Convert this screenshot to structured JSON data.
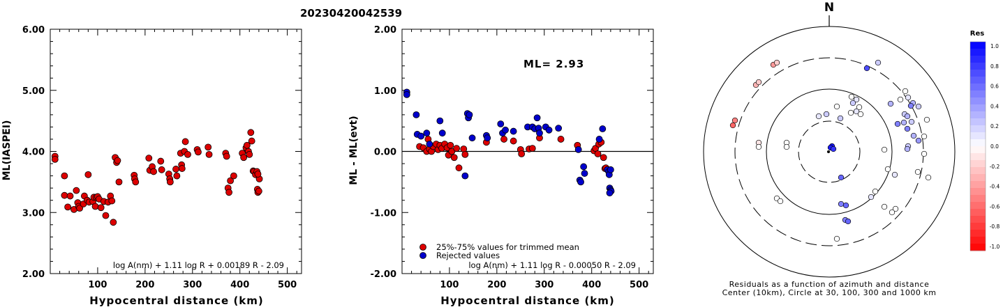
{
  "title": "20230420042539",
  "chart_data": [
    {
      "type": "scatter",
      "xlabel": "Hypocentral distance (km)",
      "ylabel": "ML(IASPEI)",
      "xlim": [
        0,
        530
      ],
      "ylim": [
        2.0,
        6.0
      ],
      "xticks": [
        100,
        200,
        300,
        400,
        500
      ],
      "yticks": [
        "2.00",
        "3.00",
        "4.00",
        "5.00",
        "6.00"
      ],
      "formula": "log A(nm) + 1.11 log R + 0.00189 R - 2.09",
      "series": [
        {
          "color": "#dd0000",
          "points": [
            [
              10,
              3.92
            ],
            [
              10,
              3.87
            ],
            [
              30,
              3.6
            ],
            [
              30,
              3.28
            ],
            [
              37,
              3.09
            ],
            [
              42,
              3.27
            ],
            [
              50,
              3.05
            ],
            [
              55,
              3.36
            ],
            [
              58,
              3.16
            ],
            [
              60,
              3.1
            ],
            [
              62,
              3.07
            ],
            [
              70,
              3.14
            ],
            [
              72,
              3.27
            ],
            [
              78,
              3.2
            ],
            [
              80,
              3.62
            ],
            [
              82,
              3.17
            ],
            [
              90,
              3.18
            ],
            [
              92,
              3.25
            ],
            [
              95,
              3.1
            ],
            [
              97,
              3.25
            ],
            [
              100,
              3.26
            ],
            [
              103,
              3.22
            ],
            [
              107,
              3.08
            ],
            [
              113,
              3.18
            ],
            [
              117,
              2.95
            ],
            [
              122,
              3.17
            ],
            [
              127,
              3.27
            ],
            [
              130,
              3.19
            ],
            [
              133,
              2.84
            ],
            [
              137,
              3.9
            ],
            [
              140,
              3.82
            ],
            [
              142,
              3.85
            ],
            [
              145,
              3.5
            ],
            [
              177,
              3.61
            ],
            [
              178,
              3.55
            ],
            [
              180,
              3.5
            ],
            [
              208,
              3.89
            ],
            [
              210,
              3.69
            ],
            [
              215,
              3.75
            ],
            [
              218,
              3.67
            ],
            [
              233,
              3.84
            ],
            [
              235,
              3.7
            ],
            [
              250,
              3.63
            ],
            [
              252,
              3.55
            ],
            [
              253,
              3.5
            ],
            [
              265,
              3.71
            ],
            [
              267,
              3.6
            ],
            [
              275,
              3.97
            ],
            [
              277,
              3.78
            ],
            [
              278,
              3.72
            ],
            [
              283,
              4.0
            ],
            [
              285,
              4.16
            ],
            [
              290,
              3.95
            ],
            [
              310,
              4.03
            ],
            [
              312,
              3.99
            ],
            [
              333,
              4.07
            ],
            [
              335,
              3.95
            ],
            [
              370,
              3.97
            ],
            [
              372,
              3.92
            ],
            [
              375,
              3.4
            ],
            [
              377,
              3.33
            ],
            [
              380,
              3.52
            ],
            [
              387,
              3.6
            ],
            [
              405,
              3.97
            ],
            [
              408,
              3.9
            ],
            [
              413,
              4.06
            ],
            [
              415,
              4.1
            ],
            [
              418,
              4.0
            ],
            [
              420,
              3.95
            ],
            [
              423,
              4.31
            ],
            [
              425,
              4.17
            ],
            [
              428,
              3.68
            ],
            [
              430,
              3.67
            ],
            [
              433,
              3.62
            ],
            [
              436,
              3.67
            ],
            [
              437,
              3.38
            ],
            [
              438,
              3.33
            ],
            [
              440,
              3.35
            ],
            [
              441,
              3.55
            ],
            [
              438,
              3.63
            ]
          ]
        }
      ]
    },
    {
      "type": "scatter",
      "xlabel": "Hypocentral distance (km)",
      "ylabel": "ML - ML(evt)",
      "xlim": [
        0,
        530
      ],
      "ylim": [
        -2.0,
        2.0
      ],
      "xticks": [
        100,
        200,
        300,
        400,
        500
      ],
      "yticks": [
        "-2.00",
        "-1.00",
        "0.00",
        "1.00",
        "2.00"
      ],
      "annotation": "ML= 2.93",
      "formula": "log A(nm) + 1.11 log R - 0.00050 R - 2.09",
      "legend": [
        "25%-75% values for trimmed mean",
        "Rejected values"
      ],
      "series": [
        {
          "name": "25%-75% values for trimmed mean",
          "color": "#dd0000",
          "points": [
            [
              37,
              0.08
            ],
            [
              45,
              0.06
            ],
            [
              52,
              0.0
            ],
            [
              55,
              0.2
            ],
            [
              58,
              0.04
            ],
            [
              62,
              0.0
            ],
            [
              66,
              0.08
            ],
            [
              72,
              0.12
            ],
            [
              76,
              0.03
            ],
            [
              80,
              0.1
            ],
            [
              84,
              0.05
            ],
            [
              90,
              0.12
            ],
            [
              95,
              0.06
            ],
            [
              98,
              -0.06
            ],
            [
              102,
              0.1
            ],
            [
              105,
              0.0
            ],
            [
              110,
              -0.1
            ],
            [
              115,
              0.05
            ],
            [
              120,
              -0.27
            ],
            [
              130,
              0.04
            ],
            [
              133,
              -0.05
            ],
            [
              178,
              0.15
            ],
            [
              215,
              0.2
            ],
            [
              235,
              0.17
            ],
            [
              250,
              0.03
            ],
            [
              252,
              -0.04
            ],
            [
              268,
              0.04
            ],
            [
              275,
              0.05
            ],
            [
              290,
              0.22
            ],
            [
              335,
              0.2
            ],
            [
              370,
              0.1
            ],
            [
              405,
              0.01
            ],
            [
              408,
              0.05
            ],
            [
              413,
              -0.04
            ],
            [
              415,
              0.12
            ],
            [
              420,
              0.15
            ],
            [
              425,
              -0.1
            ],
            [
              428,
              -0.28
            ],
            [
              430,
              -0.27
            ]
          ]
        },
        {
          "name": "Rejected values",
          "color": "#0000cc",
          "points": [
            [
              10,
              0.97
            ],
            [
              10,
              0.93
            ],
            [
              30,
              0.6
            ],
            [
              32,
              0.28
            ],
            [
              40,
              0.25
            ],
            [
              52,
              0.3
            ],
            [
              58,
              0.12
            ],
            [
              80,
              0.5
            ],
            [
              85,
              0.3
            ],
            [
              138,
              0.62
            ],
            [
              140,
              0.55
            ],
            [
              142,
              0.6
            ],
            [
              148,
              0.22
            ],
            [
              133,
              -0.4
            ],
            [
              178,
              0.26
            ],
            [
              180,
              0.22
            ],
            [
              208,
              0.45
            ],
            [
              212,
              0.3
            ],
            [
              218,
              0.35
            ],
            [
              235,
              0.33
            ],
            [
              265,
              0.4
            ],
            [
              275,
              0.4
            ],
            [
              280,
              0.37
            ],
            [
              285,
              0.55
            ],
            [
              288,
              0.38
            ],
            [
              290,
              0.3
            ],
            [
              303,
              0.4
            ],
            [
              310,
              0.35
            ],
            [
              330,
              0.38
            ],
            [
              372,
              0.03
            ],
            [
              375,
              -0.47
            ],
            [
              377,
              -0.5
            ],
            [
              383,
              -0.25
            ],
            [
              385,
              -0.36
            ],
            [
              416,
              0.2
            ],
            [
              423,
              0.37
            ],
            [
              433,
              -0.3
            ],
            [
              436,
              -0.33
            ],
            [
              437,
              -0.38
            ],
            [
              438,
              -0.6
            ],
            [
              440,
              -0.63
            ],
            [
              441,
              -0.65
            ],
            [
              438,
              -0.68
            ],
            [
              440,
              -0.3
            ]
          ]
        }
      ]
    },
    {
      "type": "scatter",
      "subtype": "polar",
      "north_label": "N",
      "caption": [
        "Residuals as a function of azimuth and distance",
        "Center (10km), Circle at 30, 100, 300 and 1000 km"
      ],
      "colorbar": {
        "title": "Res",
        "ticks": [
          "1.0",
          "0.8",
          "0.6",
          "0.4",
          "0.2",
          "0.0",
          "-0.2",
          "-0.4",
          "-0.6",
          "-0.8",
          "-1.0"
        ]
      },
      "stations": [
        [
          1192,
          210,
          0.9
        ],
        [
          1190,
          212,
          0.9
        ],
        [
          1194,
          214,
          0.8
        ],
        [
          1205,
          255,
          0.6
        ],
        [
          1205,
          293,
          0.5
        ],
        [
          1212,
          295,
          0.6
        ],
        [
          1211,
          316,
          0.5
        ],
        [
          1215,
          318,
          0.6
        ],
        [
          1242,
          98,
          0.7
        ],
        [
          1258,
          90,
          0.2
        ],
        [
          1108,
          93,
          -0.4
        ],
        [
          1113,
          90,
          -0.2
        ],
        [
          1083,
          122,
          -0.3
        ],
        [
          1087,
          118,
          -0.2
        ],
        [
          1050,
          180,
          -0.6
        ],
        [
          1053,
          173,
          -0.5
        ],
        [
          1087,
          205,
          -0.1
        ],
        [
          1087,
          211,
          0.0
        ],
        [
          1127,
          205,
          0.0
        ],
        [
          1127,
          211,
          0.0
        ],
        [
          1173,
          167,
          0.1
        ],
        [
          1184,
          164,
          0.2
        ],
        [
          1199,
          153,
          0.0
        ],
        [
          1204,
          170,
          0.2
        ],
        [
          1220,
          139,
          0.0
        ],
        [
          1227,
          143,
          0.1
        ],
        [
          1222,
          148,
          0.2
        ],
        [
          1231,
          154,
          0.0
        ],
        [
          1227,
          160,
          0.1
        ],
        [
          1219,
          162,
          0.0
        ],
        [
          1233,
          164,
          0.0
        ],
        [
          1276,
          149,
          0.3
        ],
        [
          1290,
          143,
          0.0
        ],
        [
          1297,
          131,
          0.0
        ],
        [
          1301,
          140,
          0.1
        ],
        [
          1308,
          148,
          0.3
        ],
        [
          1305,
          152,
          0.5
        ],
        [
          1316,
          153,
          0.2
        ],
        [
          1296,
          164,
          0.2
        ],
        [
          1300,
          167,
          0.3
        ],
        [
          1286,
          178,
          0.5
        ],
        [
          1295,
          176,
          0.3
        ],
        [
          1306,
          175,
          0.2
        ],
        [
          1300,
          185,
          0.5
        ],
        [
          1301,
          210,
          0.2
        ],
        [
          1316,
          202,
          0.4
        ],
        [
          1309,
          195,
          0.3
        ],
        [
          1328,
          172,
          0.0
        ],
        [
          1324,
          196,
          0.0
        ],
        [
          1300,
          214,
          0.3
        ],
        [
          1324,
          221,
          0.0
        ],
        [
          1330,
          255,
          0.0
        ],
        [
          1315,
          247,
          0.0
        ],
        [
          1267,
          215,
          0.0
        ],
        [
          1272,
          243,
          0.0
        ],
        [
          1282,
          251,
          0.1
        ],
        [
          1254,
          275,
          0.0
        ],
        [
          1248,
          283,
          0.1
        ],
        [
          1283,
          300,
          0.0
        ],
        [
          1278,
          305,
          0.0
        ],
        [
          1267,
          297,
          0.0
        ],
        [
          1113,
          285,
          0.0
        ],
        [
          1118,
          289,
          0.0
        ],
        [
          1199,
          343,
          0.0
        ]
      ]
    }
  ]
}
